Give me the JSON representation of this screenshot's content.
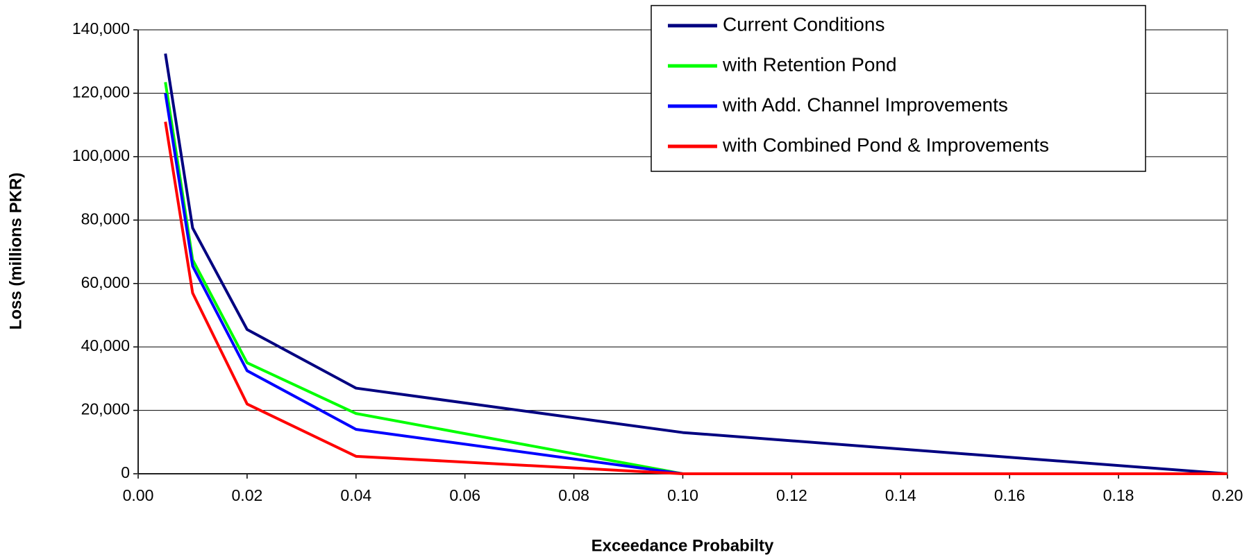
{
  "chart_data": {
    "type": "line",
    "x_label": "Exceedance Probabilty",
    "y_label": "Loss (millions PKR)",
    "x": [
      0.005,
      0.01,
      0.02,
      0.04,
      0.1,
      0.2
    ],
    "series": [
      {
        "name": "Current Conditions",
        "color": "#000080",
        "values": [
          132500,
          77500,
          45500,
          27000,
          13000,
          0
        ]
      },
      {
        "name": "with Retention Pond",
        "color": "#00ff00",
        "values": [
          123500,
          67500,
          35000,
          19000,
          0,
          0
        ]
      },
      {
        "name": "with Add. Channel Improvements",
        "color": "#0000ff",
        "values": [
          120000,
          65500,
          32500,
          14000,
          0,
          0
        ]
      },
      {
        "name": "with Combined Pond & Improvements",
        "color": "#ff0000",
        "values": [
          111000,
          57000,
          22000,
          5500,
          0,
          0
        ]
      }
    ],
    "xlim": [
      0,
      0.2
    ],
    "xticks": [
      {
        "value": 0,
        "label": "0.00"
      },
      0.02,
      0.04,
      0.06,
      0.08,
      {
        "value": 0.1,
        "label": "0.10"
      },
      0.12,
      0.14,
      0.16,
      0.18,
      {
        "value": 0.2,
        "label": "0.20"
      }
    ],
    "ylim": [
      0,
      140000
    ],
    "yticks": [
      0,
      {
        "value": 20000,
        "label": "20,000"
      },
      {
        "value": 40000,
        "label": "40,000"
      },
      {
        "value": 60000,
        "label": "60,000"
      },
      {
        "value": 80000,
        "label": "80,000"
      },
      {
        "value": 100000,
        "label": "100,000"
      },
      {
        "value": 120000,
        "label": "120,000"
      },
      {
        "value": 140000,
        "label": "140,000"
      }
    ],
    "grid": true,
    "legend_position": "top-right"
  }
}
